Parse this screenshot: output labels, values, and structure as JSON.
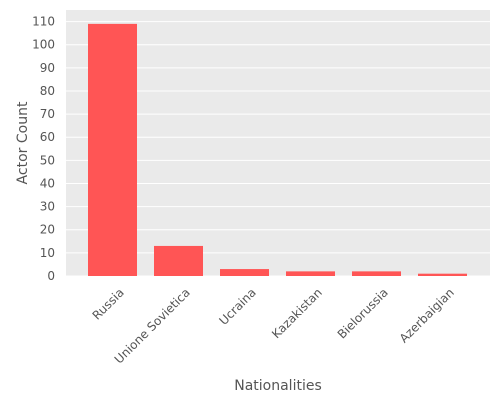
{
  "chart_data": {
    "type": "bar",
    "title": "",
    "xlabel": "Nationalities",
    "ylabel": "Actor Count",
    "categories": [
      "Russia",
      "Unione Sovietica",
      "Ucraina",
      "Kazakistan",
      "Bielorussia",
      "Azerbaigian"
    ],
    "values": [
      109,
      13,
      3,
      2,
      2,
      1
    ],
    "ylim": [
      0,
      115
    ],
    "yticks": [
      0,
      10,
      20,
      30,
      40,
      50,
      60,
      70,
      80,
      90,
      100,
      110
    ],
    "grid": true,
    "colors": {
      "bar": "#ff5555",
      "plot_bg": "#eaeaea",
      "grid": "#ffffff",
      "text": "#555555"
    }
  }
}
